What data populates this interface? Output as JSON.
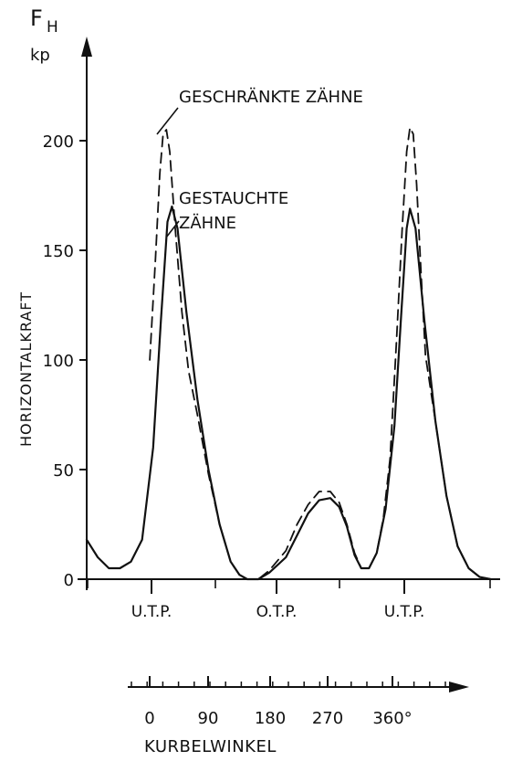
{
  "chart_data": {
    "type": "line",
    "y_axis": {
      "symbol": "F",
      "symbol_sub": "H",
      "unit": "kp",
      "label": "HORIZONTALKRAFT",
      "ticks": [
        0,
        50,
        100,
        150,
        200
      ],
      "ylim": [
        0,
        230
      ]
    },
    "x_axis": {
      "position_labels": [
        "U.T.P.",
        "O.T.P.",
        "U.T.P."
      ],
      "scale_ticks": [
        "0",
        "90",
        "180",
        "270",
        "360°"
      ],
      "xlabel": "KURBELWINKEL"
    },
    "annotations": [
      {
        "text": "GESCHRÄNKTE ZÄHNE",
        "series": 1
      },
      {
        "text": "GESTAUCHTE",
        "series": 0
      },
      {
        "text": "ZÄHNE",
        "series": 0
      }
    ],
    "series": [
      {
        "style": "solid",
        "points": [
          [
            0,
            18
          ],
          [
            10,
            10
          ],
          [
            20,
            5
          ],
          [
            30,
            5
          ],
          [
            40,
            8
          ],
          [
            50,
            18
          ],
          [
            60,
            60
          ],
          [
            67,
            118
          ],
          [
            73,
            163
          ],
          [
            77,
            170
          ],
          [
            82,
            160
          ],
          [
            90,
            122
          ],
          [
            100,
            82
          ],
          [
            110,
            50
          ],
          [
            120,
            25
          ],
          [
            130,
            8
          ],
          [
            138,
            2
          ],
          [
            145,
            0
          ],
          [
            155,
            0
          ],
          [
            165,
            3
          ],
          [
            180,
            10
          ],
          [
            190,
            20
          ],
          [
            200,
            30
          ],
          [
            210,
            36
          ],
          [
            220,
            37
          ],
          [
            228,
            33
          ],
          [
            235,
            24
          ],
          [
            242,
            11
          ],
          [
            248,
            5
          ],
          [
            255,
            5
          ],
          [
            262,
            12
          ],
          [
            270,
            32
          ],
          [
            278,
            70
          ],
          [
            284,
            120
          ],
          [
            289,
            160
          ],
          [
            292,
            169
          ],
          [
            297,
            160
          ],
          [
            305,
            118
          ],
          [
            315,
            72
          ],
          [
            325,
            38
          ],
          [
            335,
            15
          ],
          [
            345,
            5
          ],
          [
            355,
            1
          ],
          [
            365,
            0
          ]
        ]
      },
      {
        "style": "dashed",
        "points": [
          [
            57,
            100
          ],
          [
            62,
            145
          ],
          [
            66,
            185
          ],
          [
            69,
            203
          ],
          [
            72,
            205
          ],
          [
            75,
            195
          ],
          [
            80,
            160
          ],
          [
            86,
            122
          ],
          [
            92,
            95
          ],
          [
            100,
            75
          ],
          [
            110,
            48
          ],
          [
            120,
            25
          ],
          [
            130,
            8
          ],
          [
            138,
            2
          ],
          [
            145,
            0
          ],
          [
            155,
            0
          ],
          [
            165,
            4
          ],
          [
            180,
            13
          ],
          [
            190,
            25
          ],
          [
            200,
            34
          ],
          [
            210,
            40
          ],
          [
            220,
            40
          ],
          [
            228,
            35
          ],
          [
            235,
            25
          ],
          [
            242,
            12
          ],
          [
            248,
            5
          ],
          [
            255,
            5
          ],
          [
            262,
            12
          ],
          [
            268,
            28
          ],
          [
            274,
            55
          ],
          [
            280,
            110
          ],
          [
            285,
            160
          ],
          [
            289,
            195
          ],
          [
            292,
            206
          ],
          [
            295,
            203
          ],
          [
            298,
            180
          ],
          [
            302,
            140
          ],
          [
            306,
            102
          ],
          [
            315,
            72
          ],
          [
            325,
            38
          ],
          [
            335,
            15
          ],
          [
            345,
            5
          ],
          [
            355,
            1
          ],
          [
            365,
            0
          ]
        ]
      }
    ]
  }
}
